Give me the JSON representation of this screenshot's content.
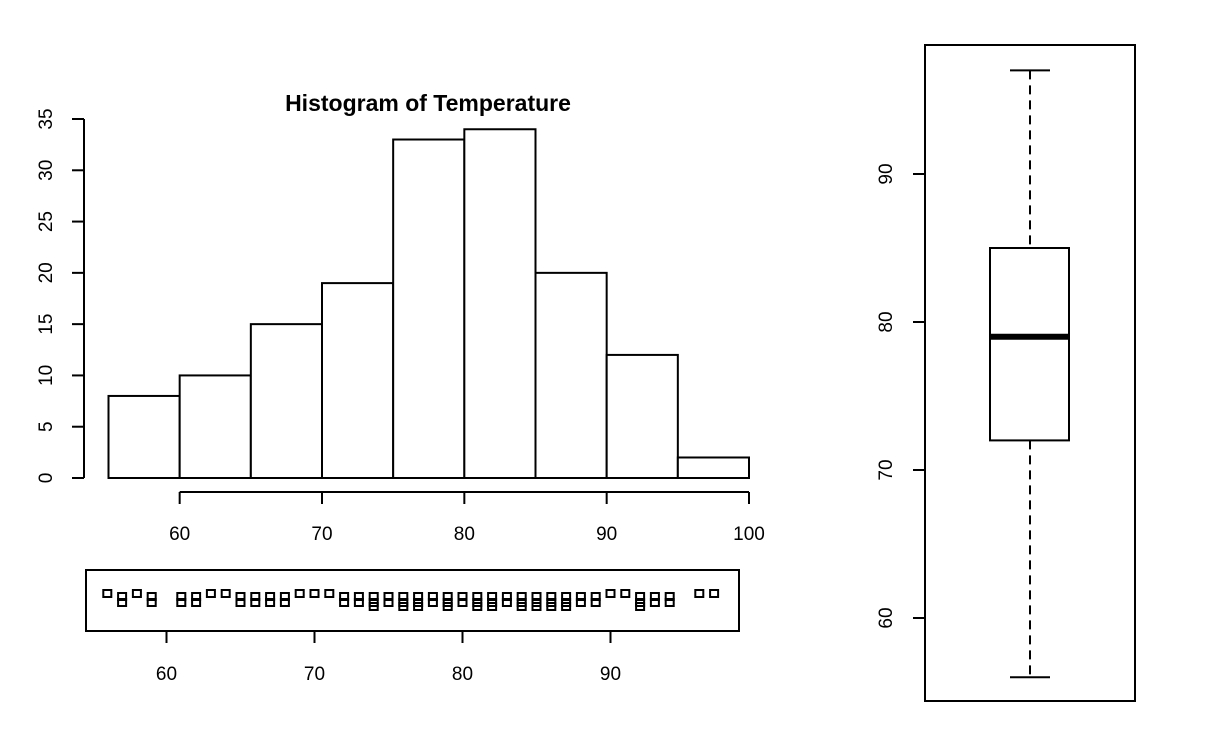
{
  "chart_data": [
    {
      "type": "bar",
      "subtype": "histogram",
      "title": "Histogram of Temperature",
      "xlabel": "",
      "ylabel": "",
      "bins": [
        {
          "from": 55,
          "to": 60,
          "count": 8
        },
        {
          "from": 60,
          "to": 65,
          "count": 10
        },
        {
          "from": 65,
          "to": 70,
          "count": 15
        },
        {
          "from": 70,
          "to": 75,
          "count": 19
        },
        {
          "from": 75,
          "to": 80,
          "count": 33
        },
        {
          "from": 80,
          "to": 85,
          "count": 34
        },
        {
          "from": 85,
          "to": 90,
          "count": 20
        },
        {
          "from": 90,
          "to": 95,
          "count": 12
        },
        {
          "from": 95,
          "to": 100,
          "count": 2
        }
      ],
      "xlim": [
        55,
        100
      ],
      "ylim": [
        0,
        35
      ],
      "x_ticks": [
        "60",
        "70",
        "80",
        "90",
        "100"
      ],
      "y_ticks": [
        "0",
        "5",
        "10",
        "15",
        "20",
        "25",
        "30",
        "35"
      ],
      "grid": false
    },
    {
      "type": "scatter",
      "subtype": "stripchart",
      "title": "",
      "xlabel": "",
      "xlim": [
        54,
        99
      ],
      "x_ticks": [
        "60",
        "70",
        "80",
        "90"
      ],
      "points": [
        {
          "x": 56,
          "n": 1
        },
        {
          "x": 57,
          "n": 2
        },
        {
          "x": 58,
          "n": 1
        },
        {
          "x": 59,
          "n": 2
        },
        {
          "x": 61,
          "n": 2
        },
        {
          "x": 62,
          "n": 2
        },
        {
          "x": 63,
          "n": 1
        },
        {
          "x": 64,
          "n": 1
        },
        {
          "x": 65,
          "n": 2
        },
        {
          "x": 66,
          "n": 2
        },
        {
          "x": 67,
          "n": 2
        },
        {
          "x": 68,
          "n": 2
        },
        {
          "x": 69,
          "n": 1
        },
        {
          "x": 70,
          "n": 1
        },
        {
          "x": 71,
          "n": 1
        },
        {
          "x": 72,
          "n": 2
        },
        {
          "x": 73,
          "n": 2
        },
        {
          "x": 74,
          "n": 3
        },
        {
          "x": 75,
          "n": 2
        },
        {
          "x": 76,
          "n": 3
        },
        {
          "x": 77,
          "n": 3
        },
        {
          "x": 78,
          "n": 2
        },
        {
          "x": 79,
          "n": 3
        },
        {
          "x": 80,
          "n": 2
        },
        {
          "x": 81,
          "n": 3
        },
        {
          "x": 82,
          "n": 3
        },
        {
          "x": 83,
          "n": 2
        },
        {
          "x": 84,
          "n": 3
        },
        {
          "x": 85,
          "n": 3
        },
        {
          "x": 86,
          "n": 3
        },
        {
          "x": 87,
          "n": 3
        },
        {
          "x": 88,
          "n": 2
        },
        {
          "x": 89,
          "n": 2
        },
        {
          "x": 90,
          "n": 1
        },
        {
          "x": 91,
          "n": 1
        },
        {
          "x": 92,
          "n": 3
        },
        {
          "x": 93,
          "n": 2
        },
        {
          "x": 94,
          "n": 2
        },
        {
          "x": 96,
          "n": 1
        },
        {
          "x": 97,
          "n": 1
        }
      ]
    },
    {
      "type": "boxplot",
      "title": "",
      "ylabel": "",
      "ylim": [
        54.5,
        98.5
      ],
      "y_ticks": [
        "60",
        "70",
        "80",
        "90"
      ],
      "min": 56,
      "q1": 72,
      "median": 79,
      "q3": 85,
      "max": 97
    }
  ]
}
